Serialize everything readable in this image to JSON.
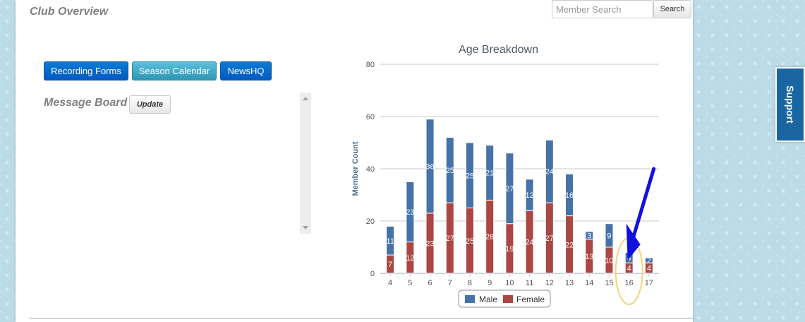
{
  "header": {
    "title": "Club Overview",
    "search_placeholder": "Member Search",
    "search_button_label": "Search"
  },
  "nav": {
    "recording_forms": "Recording Forms",
    "season_calendar": "Season Calendar",
    "newshq": "NewsHQ"
  },
  "message_board": {
    "title": "Message Board",
    "update_label": "Update"
  },
  "support": {
    "label": "Support"
  },
  "colors": {
    "male": "#4572a7",
    "female": "#aa4643",
    "accent_blue": "#0559c2",
    "teal": "#2f96b4",
    "support_tab": "#1a66a3",
    "annotation_arrow": "#1010e0",
    "annotation_highlight": "#f5d47a"
  },
  "chart_data": {
    "type": "bar",
    "stacked": true,
    "title": "Age Breakdown",
    "xlabel": "",
    "ylabel": "Member Count",
    "ylim": [
      0,
      80
    ],
    "yticks": [
      0,
      20,
      40,
      60,
      80
    ],
    "grid": true,
    "legend": "bottom-center",
    "categories": [
      "4",
      "5",
      "6",
      "7",
      "8",
      "9",
      "10",
      "11",
      "12",
      "13",
      "14",
      "15",
      "16",
      "17"
    ],
    "series": [
      {
        "name": "Male",
        "values": [
          11,
          23,
          36,
          25,
          25,
          21,
          27,
          12,
          24,
          16,
          3,
          9,
          4,
          2
        ]
      },
      {
        "name": "Female",
        "values": [
          7,
          12,
          23,
          27,
          25,
          28,
          19,
          24,
          27,
          22,
          13,
          10,
          4,
          4
        ]
      }
    ],
    "annotation": {
      "category": "16"
    }
  }
}
